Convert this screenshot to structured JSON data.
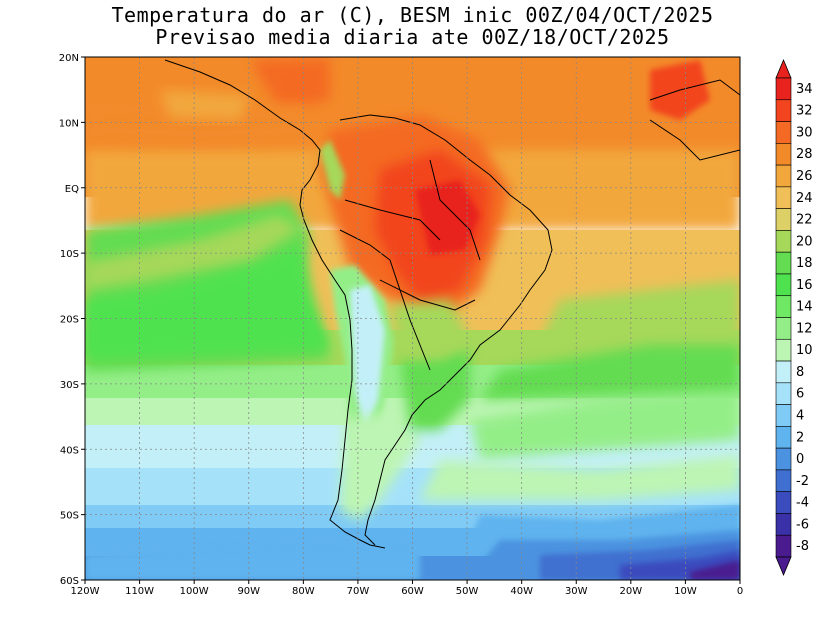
{
  "title": {
    "line1": "Temperatura do ar (C), BESM inic 00Z/04/OCT/2025",
    "line2": "Previsao media diaria ate 00Z/18/OCT/2025"
  },
  "axes": {
    "lon_labels": [
      "120W",
      "110W",
      "100W",
      "90W",
      "80W",
      "70W",
      "60W",
      "50W",
      "40W",
      "30W",
      "20W",
      "10W",
      "0"
    ],
    "lat_labels": [
      "20N",
      "10N",
      "EQ",
      "10S",
      "20S",
      "30S",
      "40S",
      "50S",
      "60S"
    ]
  },
  "colorbar": {
    "labels": [
      "34",
      "32",
      "30",
      "28",
      "26",
      "24",
      "22",
      "20",
      "18",
      "16",
      "14",
      "12",
      "10",
      "8",
      "6",
      "4",
      "2",
      "0",
      "-2",
      "-4",
      "-6",
      "-8"
    ],
    "colors": [
      "#e8221c",
      "#f2441f",
      "#f46a24",
      "#f38a2a",
      "#f2a73c",
      "#f0bf58",
      "#ddd067",
      "#a6d85a",
      "#63dc51",
      "#4fe24f",
      "#6fe864",
      "#94ee88",
      "#bdf5b4",
      "#c3f0f8",
      "#a5e2fa",
      "#80cbf5",
      "#5fb3ee",
      "#4b93e0",
      "#3f6fd0",
      "#3a4cbe",
      "#3a30a8",
      "#4a1a8f"
    ]
  },
  "icons": {
    "colorbar_top": "triangle-up",
    "colorbar_bottom": "triangle-down"
  }
}
